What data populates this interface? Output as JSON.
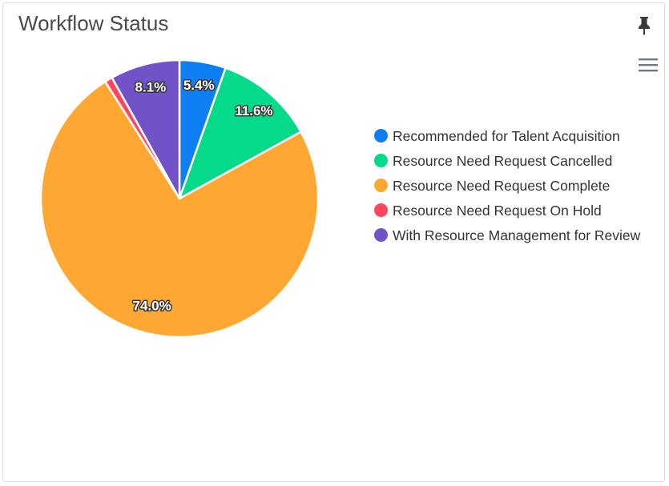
{
  "widget": {
    "title": "Workflow Status",
    "pin_icon": "pin-icon",
    "menu_icon": "hamburger-menu-icon"
  },
  "chart_data": {
    "type": "pie",
    "title": "Workflow Status",
    "legend_position": "right",
    "slices": [
      {
        "name": "Recommended for Talent Acquisition",
        "value": 5.4,
        "label": "5.4%",
        "color": "#0d7ff2"
      },
      {
        "name": "Resource Need Request Cancelled",
        "value": 11.6,
        "label": "11.6%",
        "color": "#05d98a"
      },
      {
        "name": "Resource Need Request Complete",
        "value": 74.0,
        "label": "74.0%",
        "color": "#ffa733"
      },
      {
        "name": "Resource Need Request On Hold",
        "value": 0.9,
        "label": "",
        "color": "#ff4560"
      },
      {
        "name": "With Resource Management for Review",
        "value": 8.1,
        "label": "8.1%",
        "color": "#7153c7"
      }
    ]
  }
}
